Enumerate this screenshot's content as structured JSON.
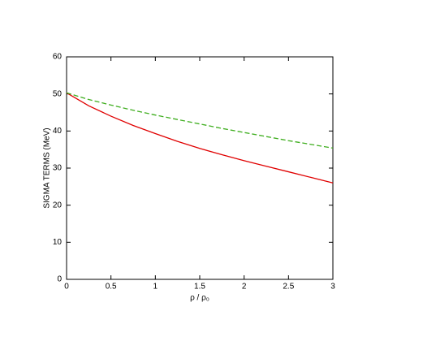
{
  "chart_data": {
    "type": "line",
    "x_label": "ρ / ρ₀",
    "y_label": "SIGMA TERMS (MeV)",
    "x": [
      0,
      0.25,
      0.5,
      0.75,
      1,
      1.25,
      1.5,
      1.75,
      2,
      2.25,
      2.5,
      2.75,
      3
    ],
    "series": [
      {
        "color": "#e00000",
        "dash": "solid",
        "values": [
          50.3,
          46.8,
          44.0,
          41.5,
          39.3,
          37.2,
          35.3,
          33.6,
          32.0,
          30.5,
          29.0,
          27.5,
          26.0
        ]
      },
      {
        "color": "#3fae1f",
        "dash": "dashed",
        "values": [
          50.3,
          48.5,
          47.0,
          45.6,
          44.3,
          43.1,
          41.9,
          40.7,
          39.6,
          38.5,
          37.4,
          36.4,
          35.4
        ]
      }
    ],
    "xlim": [
      0,
      3
    ],
    "xticks": [
      0,
      0.5,
      1,
      1.5,
      2,
      2.5,
      3
    ],
    "ylim": [
      0,
      60
    ],
    "yticks": [
      0,
      10,
      20,
      30,
      40,
      50,
      60
    ]
  }
}
